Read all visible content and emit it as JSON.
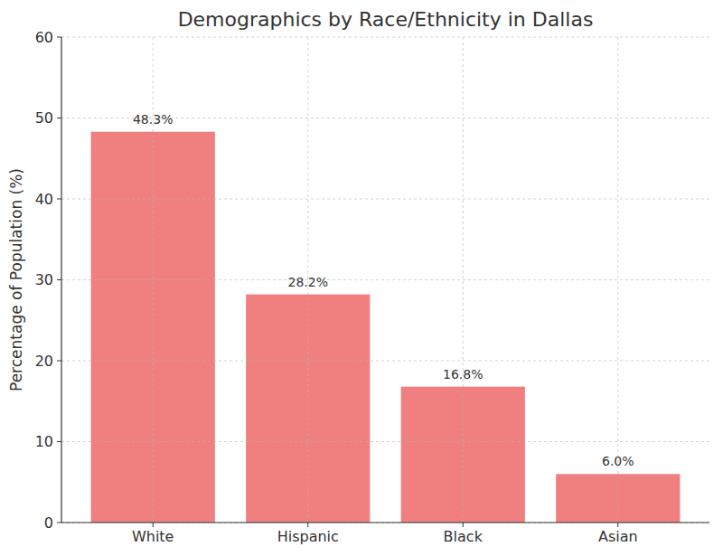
{
  "chart_data": {
    "type": "bar",
    "title": "Demographics by Race/Ethnicity in Dallas",
    "y_label": "Percentage of Population (%)",
    "categories": [
      "White",
      "Hispanic",
      "Black",
      "Asian"
    ],
    "values": [
      48.3,
      28.2,
      16.8,
      6.0
    ],
    "value_labels": [
      "48.3%",
      "28.2%",
      "16.8%",
      "6.0%"
    ],
    "color": "#f08080",
    "ylim": [
      0,
      60
    ],
    "yticks": [
      0,
      10,
      20,
      30,
      40,
      50,
      60
    ],
    "grid": true,
    "data_labels": true
  }
}
